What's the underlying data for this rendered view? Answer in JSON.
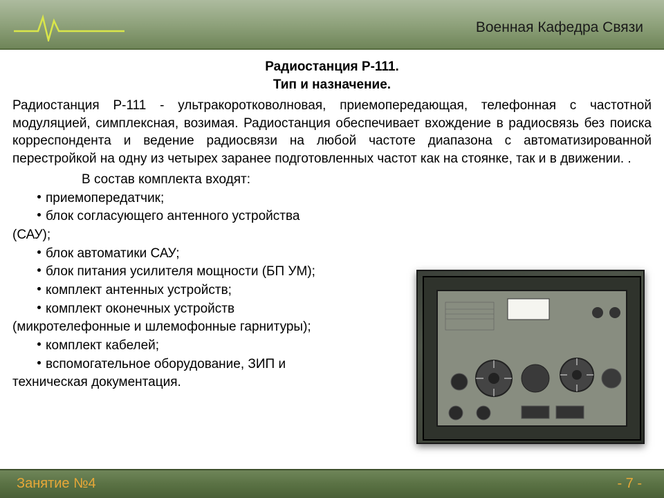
{
  "header": {
    "title": "Военная Кафедра Связи",
    "bg_gradient": [
      "#adbb9f",
      "#8fa27c",
      "#6f8559"
    ],
    "ecg_color": "#d9e64a"
  },
  "titles": {
    "line1": "Радиостанция Р-111.",
    "line2": "Тип и назначение."
  },
  "paragraph": "Радиостанция Р-111 - ультракоротковолновая,   приемопередающая, телефонная с частотной модуляцией, симплексная, возимая. Радиостанция обеспечивает вхождение в радиосвязь без поиска корреспондента и ведение радиосвязи на любой частоте диапазона  с автоматизированной перестройкой на одну из четырех заранее подготовленных частот  как на стоянке, так и в движении.   .",
  "list_intro": "В состав комплекта входят:",
  "items": [
    {
      "text": "приемопередатчик;",
      "cont": null
    },
    {
      "text": "блок согласующего антенного устройства",
      "cont": "(САУ);"
    },
    {
      "text": "блок автоматики САУ;",
      "cont": null
    },
    {
      "text": "блок питания усилителя мощности (БП УМ);",
      "cont": null
    },
    {
      "text": "комплект антенных устройств;",
      "cont": null
    },
    {
      "text": "комплект оконечных устройств",
      "cont": "(микротелефонные и шлемофонные гарнитуры);"
    },
    {
      "text": "комплект кабелей;",
      "cont": null
    },
    {
      "text": "вспомогательное оборудование, ЗИП и",
      "cont": "техническая документация."
    }
  ],
  "footer": {
    "left": "Занятие №4",
    "right": "- 7 -",
    "text_color": "#e8a838",
    "bg_gradient": [
      "#6f8559",
      "#5a7244",
      "#4a5f36"
    ]
  },
  "equipment": {
    "panel_color": "#8a8f82",
    "frame_color": "#1a1a1a",
    "knob_color": "#3a3a3a"
  },
  "typography": {
    "body_fontsize": 19,
    "title_fontsize": 19,
    "title_weight": "bold",
    "footer_fontsize": 20
  }
}
